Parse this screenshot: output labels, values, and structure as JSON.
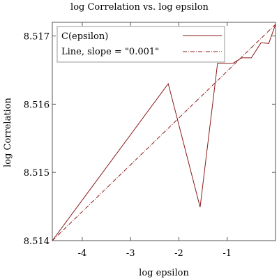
{
  "chart_data": {
    "type": "line",
    "title": "log Correlation vs. log epsilon",
    "xlabel": "log epsilon",
    "ylabel": "log Correlation",
    "xlim": [
      -4.62,
      0.0
    ],
    "ylim": [
      8.514,
      8.5172
    ],
    "x_ticks": [
      -4,
      -3,
      -2,
      -1
    ],
    "x_tick_labels": [
      "-4",
      "-3",
      "-2",
      "-1"
    ],
    "y_ticks": [
      8.514,
      8.515,
      8.516,
      8.517
    ],
    "y_tick_labels": [
      "8.514",
      "8.515",
      "8.516",
      "8.517"
    ],
    "grid": false,
    "legend_placement": "top-left",
    "series": [
      {
        "name": "C(epsilon)",
        "style": "solid",
        "color": "#8b1a1a",
        "x": [
          -4.62,
          -2.22,
          -1.56,
          -1.2,
          -0.88,
          -0.7,
          -0.5,
          -0.3,
          -0.14,
          0.0
        ],
        "y": [
          8.514,
          8.5163,
          8.51449,
          8.5166,
          8.5166,
          8.51668,
          8.51668,
          8.5169,
          8.51689,
          8.51717
        ]
      },
      {
        "name": "Line, slope = \"0.001\"",
        "style": "dashdot",
        "color": "#8b1a1a",
        "x": [
          -4.62,
          0.0
        ],
        "y": [
          8.514,
          8.51717
        ]
      }
    ]
  }
}
